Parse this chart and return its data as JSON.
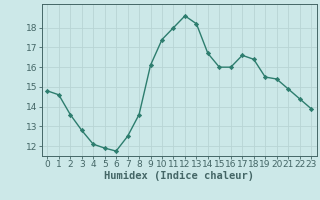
{
  "x": [
    0,
    1,
    2,
    3,
    4,
    5,
    6,
    7,
    8,
    9,
    10,
    11,
    12,
    13,
    14,
    15,
    16,
    17,
    18,
    19,
    20,
    21,
    22,
    23
  ],
  "y": [
    14.8,
    14.6,
    13.6,
    12.8,
    12.1,
    11.9,
    11.75,
    12.5,
    13.6,
    16.1,
    17.4,
    18.0,
    18.6,
    18.2,
    16.7,
    16.0,
    16.0,
    16.6,
    16.4,
    15.5,
    15.4,
    14.9,
    14.4,
    13.9
  ],
  "line_color": "#2d7d6e",
  "marker": "D",
  "markersize": 2.2,
  "linewidth": 1.0,
  "xlabel": "Humidex (Indice chaleur)",
  "xlabel_fontsize": 7.5,
  "xlabel_fontweight": "bold",
  "ylim": [
    11.5,
    19.2
  ],
  "xlim": [
    -0.5,
    23.5
  ],
  "yticks": [
    12,
    13,
    14,
    15,
    16,
    17,
    18
  ],
  "xticks": [
    0,
    1,
    2,
    3,
    4,
    5,
    6,
    7,
    8,
    9,
    10,
    11,
    12,
    13,
    14,
    15,
    16,
    17,
    18,
    19,
    20,
    21,
    22,
    23
  ],
  "bg_color": "#cce8e8",
  "grid_color": "#b8d4d4",
  "tick_fontsize": 6.5,
  "spine_color": "#446666"
}
